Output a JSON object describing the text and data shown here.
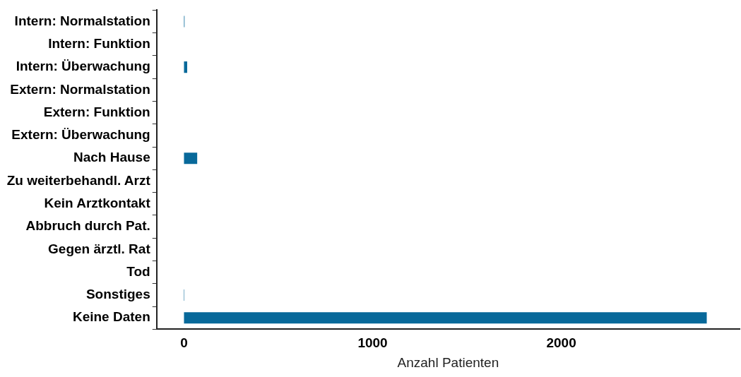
{
  "chart_data": {
    "type": "bar",
    "orientation": "horizontal",
    "xlabel": "Anzahl Patienten",
    "categories": [
      "Intern: Normalstation",
      "Intern: Funktion",
      "Intern: Überwachung",
      "Extern: Normalstation",
      "Extern: Funktion",
      "Extern: Überwachung",
      "Nach Hause",
      "Zu weiterbehandl. Arzt",
      "Kein Arztkontakt",
      "Abbruch durch Pat.",
      "Gegen ärztl. Rat",
      "Tod",
      "Sonstiges",
      "Keine Daten"
    ],
    "values": [
      3,
      0,
      17,
      0,
      0,
      0,
      70,
      0,
      0,
      0,
      0,
      0,
      2,
      2771
    ],
    "color": "#08699a",
    "xlim": [
      -145,
      2945
    ],
    "xticks": [
      0,
      1000,
      2000
    ],
    "grid": false,
    "legend": false
  }
}
